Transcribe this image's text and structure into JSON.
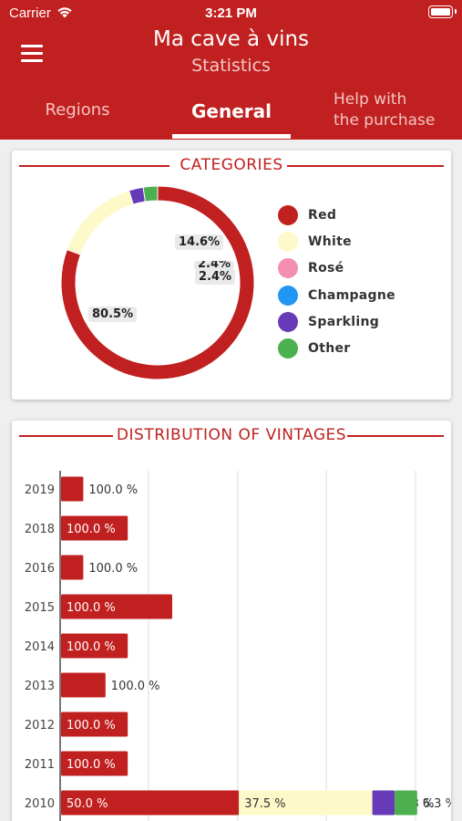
{
  "status_bar": {
    "carrier": "Carrier",
    "time": "3:21 PM"
  },
  "header": {
    "title": "Ma cave à vins",
    "subtitle": "Statistics"
  },
  "tabs": {
    "regions": "Regions",
    "general": "General",
    "help_line1": "Help with",
    "help_line2": "the purchase"
  },
  "categories": {
    "title": "CATEGORIES",
    "legend": [
      {
        "label": "Red",
        "color": "#c0201f"
      },
      {
        "label": "White",
        "color": "#fdf9c8"
      },
      {
        "label": "Rosé",
        "color": "#f48fb1"
      },
      {
        "label": "Champagne",
        "color": "#2196f3"
      },
      {
        "label": "Sparkling",
        "color": "#673ab7"
      },
      {
        "label": "Other",
        "color": "#4caf50"
      }
    ],
    "labels": {
      "red": "80.5%",
      "white": "14.6%",
      "sparkling": "2.4%",
      "other": "2.4%"
    }
  },
  "chart_data": [
    {
      "type": "pie",
      "title": "CATEGORIES",
      "categories": [
        "Red",
        "White",
        "Rosé",
        "Champagne",
        "Sparkling",
        "Other"
      ],
      "values": [
        80.5,
        14.6,
        0,
        0,
        2.4,
        2.4
      ],
      "colors": [
        "#c0201f",
        "#fdf9c8",
        "#f48fb1",
        "#2196f3",
        "#673ab7",
        "#4caf50"
      ],
      "donut": true
    },
    {
      "type": "bar",
      "title": "DISTRIBUTION OF VINTAGES",
      "orientation": "horizontal",
      "stacked": true,
      "categories": [
        "2019",
        "2018",
        "2016",
        "2015",
        "2014",
        "2013",
        "2012",
        "2011",
        "2010"
      ],
      "series": [
        {
          "name": "Red",
          "values": [
            100,
            100,
            100,
            100,
            100,
            100,
            100,
            100,
            50
          ],
          "color": "#c0201f"
        },
        {
          "name": "White",
          "values": [
            0,
            0,
            0,
            0,
            0,
            0,
            0,
            0,
            37.5
          ],
          "color": "#fdf9c8"
        },
        {
          "name": "Sparkling",
          "values": [
            0,
            0,
            0,
            0,
            0,
            0,
            0,
            0,
            6.3
          ],
          "color": "#673ab7"
        },
        {
          "name": "Other",
          "values": [
            0,
            0,
            0,
            0,
            0,
            0,
            0,
            0,
            6.3
          ],
          "color": "#4caf50"
        }
      ],
      "bottles": [
        1,
        3,
        1,
        5,
        3,
        2,
        3,
        3,
        16
      ],
      "value_labels": [
        [
          "100.0 %"
        ],
        [
          "100.0 %"
        ],
        [
          "100.0 %"
        ],
        [
          "100.0 %"
        ],
        [
          "100.0 %"
        ],
        [
          "100.0 %"
        ],
        [
          "100.0 %"
        ],
        [
          "100.0 %"
        ],
        [
          "50.0 %",
          "37.5 %",
          "6.3 %",
          "6.3 %"
        ]
      ],
      "grid": true
    }
  ]
}
